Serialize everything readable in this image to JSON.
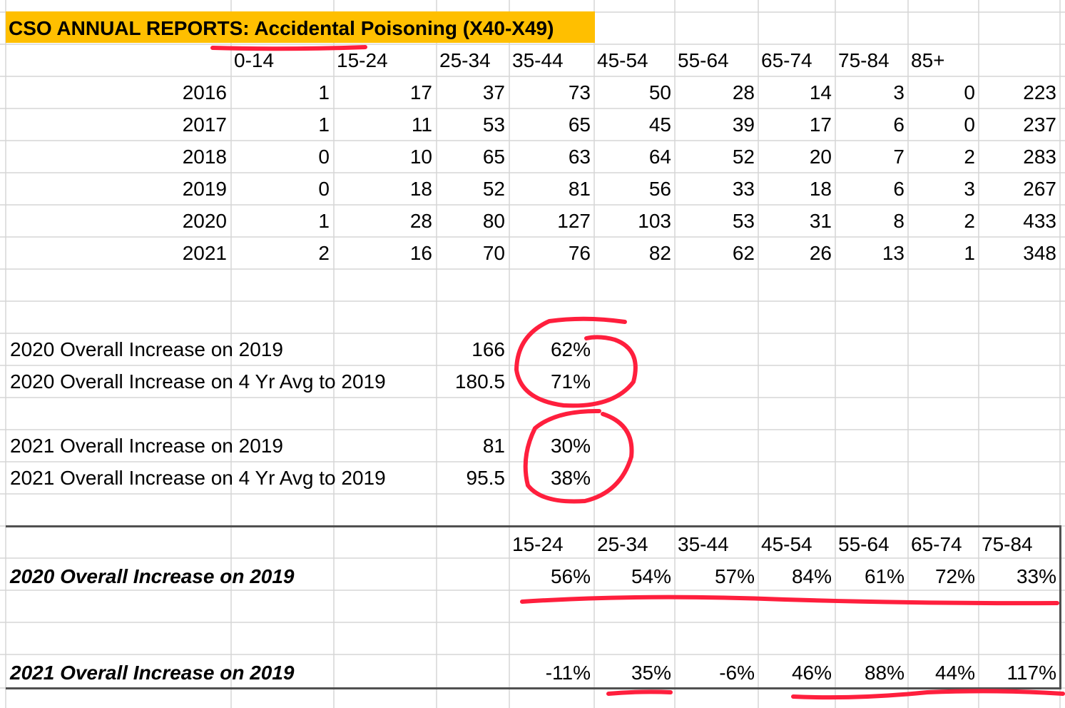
{
  "title": "CSO ANNUAL REPORTS: Accidental Poisoning (X40-X49)",
  "age_headers": [
    "0-14",
    "15-24",
    "25-34",
    "35-44",
    "45-54",
    "55-64",
    "65-74",
    "75-84",
    "85+"
  ],
  "rows": [
    {
      "year": "2016",
      "values": [
        "1",
        "17",
        "37",
        "73",
        "50",
        "28",
        "14",
        "3",
        "0"
      ],
      "total": "223"
    },
    {
      "year": "2017",
      "values": [
        "1",
        "11",
        "53",
        "65",
        "45",
        "39",
        "17",
        "6",
        "0"
      ],
      "total": "237"
    },
    {
      "year": "2018",
      "values": [
        "0",
        "10",
        "65",
        "63",
        "64",
        "52",
        "20",
        "7",
        "2"
      ],
      "total": "283"
    },
    {
      "year": "2019",
      "values": [
        "0",
        "18",
        "52",
        "81",
        "56",
        "33",
        "18",
        "6",
        "3"
      ],
      "total": "267"
    },
    {
      "year": "2020",
      "values": [
        "1",
        "28",
        "80",
        "127",
        "103",
        "53",
        "31",
        "8",
        "2"
      ],
      "total": "433"
    },
    {
      "year": "2021",
      "values": [
        "2",
        "16",
        "70",
        "76",
        "82",
        "62",
        "26",
        "13",
        "1"
      ],
      "total": "348"
    }
  ],
  "summary": [
    {
      "label": "2020 Overall Increase on 2019",
      "value": "166",
      "pct": "62%"
    },
    {
      "label": "2020 Overall Increase on 4 Yr Avg to 2019",
      "value": "180.5",
      "pct": "71%"
    },
    {
      "label": "2021 Overall Increase on 2019",
      "value": "81",
      "pct": "30%"
    },
    {
      "label": "2021 Overall Increase on 4 Yr Avg to 2019",
      "value": "95.5",
      "pct": "38%"
    }
  ],
  "increase_table": {
    "headers": [
      "15-24",
      "25-34",
      "35-44",
      "45-54",
      "55-64",
      "65-74",
      "75-84"
    ],
    "row_2020": {
      "label": "2020 Overall Increase on 2019",
      "values": [
        "56%",
        "54%",
        "57%",
        "84%",
        "61%",
        "72%",
        "33%"
      ]
    },
    "row_2021": {
      "label": "2021 Overall Increase on 2019",
      "values": [
        "-11%",
        "35%",
        "-6%",
        "46%",
        "88%",
        "44%",
        "117%"
      ]
    }
  },
  "colors": {
    "title_fill": "#ffbf00",
    "annotation": "#ff1f3d",
    "gridline": "#d4d4d4"
  }
}
